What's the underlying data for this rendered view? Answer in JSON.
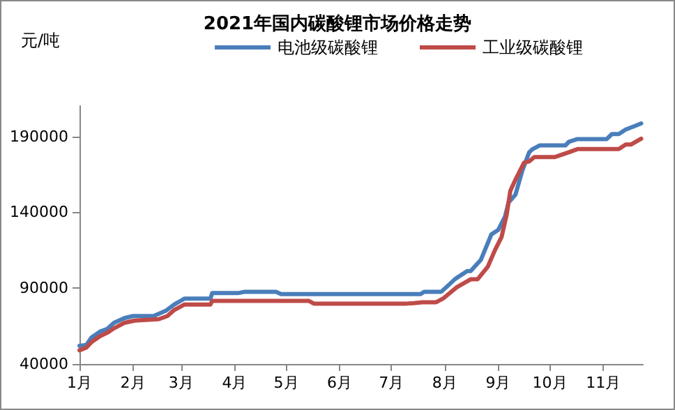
{
  "chart_data": {
    "type": "line",
    "title": "2021年国内碳酸锂市场价格走势",
    "ylabel": "元/吨",
    "xlim": [
      "2021-01-01",
      "2021-11-24"
    ],
    "xticks": [
      {
        "value": "2021-01-01",
        "label": "1月"
      },
      {
        "value": "2021-02-01",
        "label": "2月"
      },
      {
        "value": "2021-03-01",
        "label": "3月"
      },
      {
        "value": "2021-04-01",
        "label": "4月"
      },
      {
        "value": "2021-05-01",
        "label": "5月"
      },
      {
        "value": "2021-06-01",
        "label": "6月"
      },
      {
        "value": "2021-07-01",
        "label": "7月"
      },
      {
        "value": "2021-08-01",
        "label": "8月"
      },
      {
        "value": "2021-09-01",
        "label": "9月"
      },
      {
        "value": "2021-10-01",
        "label": "10月"
      },
      {
        "value": "2021-11-01",
        "label": "11月"
      }
    ],
    "ylim": [
      40000,
      210000
    ],
    "yticks": [
      40000,
      90000,
      140000,
      190000
    ],
    "legend": "top right",
    "grid": false,
    "marker": "none",
    "line_style": "solid",
    "series": [
      {
        "name": "电池级碳酸锂",
        "color": "#4a7ebb",
        "x": [
          "2021-01-01",
          "2021-01-05",
          "2021-01-08",
          "2021-01-13",
          "2021-01-17",
          "2021-01-21",
          "2021-01-27",
          "2021-02-01",
          "2021-02-13",
          "2021-02-20",
          "2021-02-25",
          "2021-03-03",
          "2021-03-18",
          "2021-03-19",
          "2021-04-03",
          "2021-04-07",
          "2021-04-25",
          "2021-04-28",
          "2021-07-18",
          "2021-07-20",
          "2021-07-30",
          "2021-08-01",
          "2021-08-07",
          "2021-08-14",
          "2021-08-16",
          "2021-08-22",
          "2021-08-28",
          "2021-09-01",
          "2021-09-05",
          "2021-09-07",
          "2021-09-11",
          "2021-09-15",
          "2021-09-19",
          "2021-09-21",
          "2021-09-25",
          "2021-10-10",
          "2021-10-12",
          "2021-10-17",
          "2021-11-03",
          "2021-11-06",
          "2021-11-10",
          "2021-11-14",
          "2021-11-19",
          "2021-11-23"
        ],
        "values": [
          52000,
          52500,
          57500,
          61400,
          63000,
          67100,
          70200,
          71600,
          71600,
          75000,
          79200,
          83100,
          83100,
          86700,
          86700,
          87600,
          87600,
          86100,
          86100,
          87600,
          87600,
          89700,
          96000,
          101200,
          101200,
          108700,
          125300,
          128300,
          137300,
          146400,
          151500,
          167400,
          179500,
          181600,
          184000,
          184000,
          186400,
          188200,
          188200,
          191500,
          191500,
          194500,
          196700,
          198500
        ]
      },
      {
        "name": "工业级碳酸锂",
        "color": "#be4b48",
        "x": [
          "2021-01-01",
          "2021-01-05",
          "2021-01-08",
          "2021-01-13",
          "2021-01-17",
          "2021-01-21",
          "2021-01-27",
          "2021-02-02",
          "2021-02-16",
          "2021-02-21",
          "2021-02-25",
          "2021-03-03",
          "2021-03-18",
          "2021-03-19",
          "2021-05-14",
          "2021-05-17",
          "2021-07-10",
          "2021-07-14",
          "2021-07-19",
          "2021-07-27",
          "2021-07-31",
          "2021-08-08",
          "2021-08-16",
          "2021-08-20",
          "2021-08-26",
          "2021-08-30",
          "2021-09-03",
          "2021-09-06",
          "2021-09-08",
          "2021-09-11",
          "2021-09-16",
          "2021-09-19",
          "2021-09-22",
          "2021-10-04",
          "2021-10-12",
          "2021-10-17",
          "2021-11-10",
          "2021-11-14",
          "2021-11-17",
          "2021-11-23"
        ],
        "values": [
          49000,
          50800,
          54500,
          58400,
          60500,
          63500,
          67100,
          68600,
          69500,
          71600,
          75600,
          79200,
          79200,
          81600,
          81600,
          79800,
          79800,
          80100,
          80700,
          80700,
          83100,
          90600,
          95800,
          95800,
          104200,
          114700,
          123800,
          138900,
          153900,
          161400,
          172600,
          173500,
          176400,
          176400,
          179500,
          181600,
          181600,
          184600,
          184600,
          188500
        ]
      }
    ]
  }
}
